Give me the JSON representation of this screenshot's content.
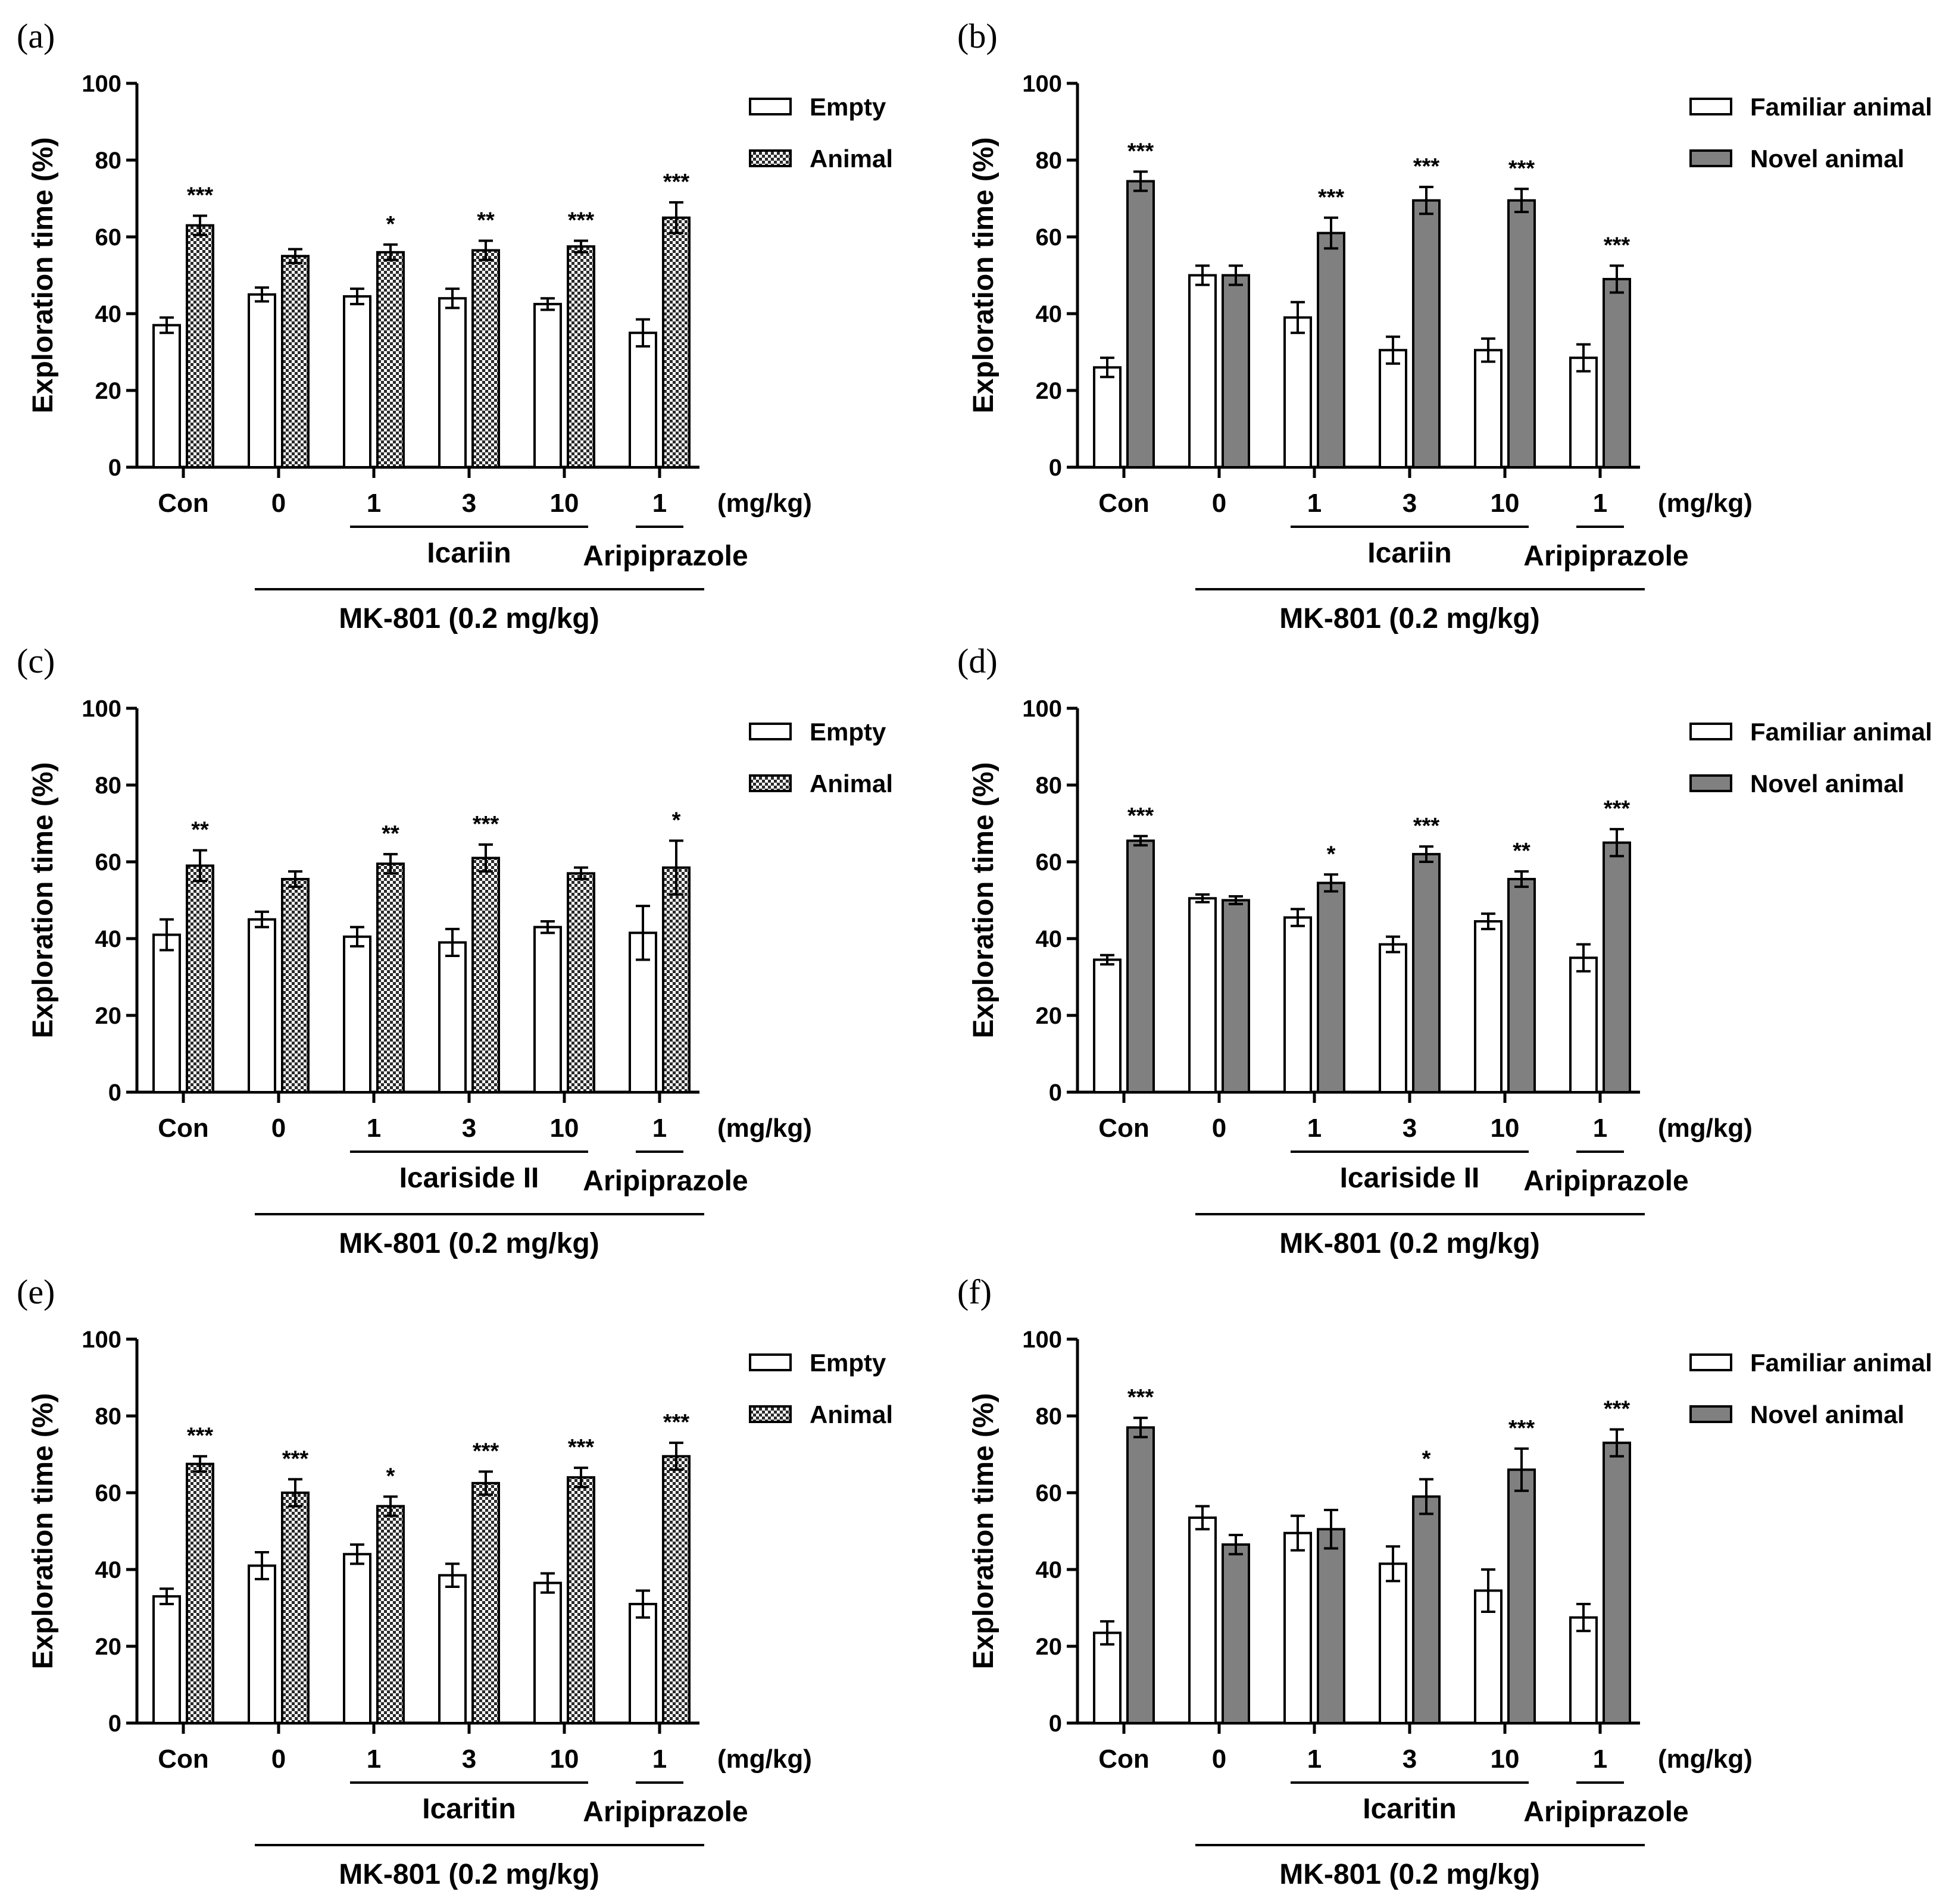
{
  "colors": {
    "axis": "#000000",
    "bar_outline": "#000000",
    "empty_fill": "#ffffff",
    "novel_fill": "#808080",
    "hatch_dark": "#2a2a2a",
    "hatch_light": "#ffffff"
  },
  "chart_data": [
    {
      "panel_label": "(a)",
      "type": "bar",
      "title": "",
      "ylabel": "Exploration time (%)",
      "ylim": [
        0,
        100
      ],
      "yticks": [
        "0",
        "20",
        "40",
        "60",
        "80",
        "100"
      ],
      "categories": [
        "Con",
        "0",
        "1",
        "3",
        "10",
        "1"
      ],
      "unit_label": "(mg/kg)",
      "drug_label": "Icariin",
      "ref_label": "Aripiprazole",
      "mk_label": "MK-801 (0.2 mg/kg)",
      "series": [
        {
          "name": "Empty",
          "values": [
            37,
            45,
            44.5,
            44,
            42.5,
            35
          ],
          "errors": [
            2,
            1.8,
            2,
            2.5,
            1.5,
            3.5
          ],
          "style": "open"
        },
        {
          "name": "Animal",
          "values": [
            63,
            55,
            56,
            56.5,
            57.5,
            65
          ],
          "errors": [
            2.5,
            1.8,
            2,
            2.5,
            1.5,
            4
          ],
          "style": "hatched"
        }
      ],
      "significance": [
        "***",
        "",
        "*",
        "**",
        "***",
        "***"
      ]
    },
    {
      "panel_label": "(b)",
      "type": "bar",
      "title": "",
      "ylabel": "Exploration time (%)",
      "ylim": [
        0,
        100
      ],
      "yticks": [
        "0",
        "20",
        "40",
        "60",
        "80",
        "100"
      ],
      "categories": [
        "Con",
        "0",
        "1",
        "3",
        "10",
        "1"
      ],
      "unit_label": "(mg/kg)",
      "drug_label": "Icariin",
      "ref_label": "Aripiprazole",
      "mk_label": "MK-801 (0.2 mg/kg)",
      "series": [
        {
          "name": "Familiar animal",
          "values": [
            26,
            50,
            39,
            30.5,
            30.5,
            28.5
          ],
          "errors": [
            2.5,
            2.5,
            4,
            3.5,
            3,
            3.5
          ],
          "style": "open"
        },
        {
          "name": "Novel animal",
          "values": [
            74.5,
            50,
            61,
            69.5,
            69.5,
            49
          ],
          "errors": [
            2.5,
            2.5,
            4,
            3.5,
            3,
            3.5
          ],
          "style": "gray"
        }
      ],
      "significance": [
        "***",
        "",
        "***",
        "***",
        "***",
        "***"
      ]
    },
    {
      "panel_label": "(c)",
      "type": "bar",
      "title": "",
      "ylabel": "Exploration time (%)",
      "ylim": [
        0,
        100
      ],
      "yticks": [
        "0",
        "20",
        "40",
        "60",
        "80",
        "100"
      ],
      "categories": [
        "Con",
        "0",
        "1",
        "3",
        "10",
        "1"
      ],
      "unit_label": "(mg/kg)",
      "drug_label": "Icariside II",
      "ref_label": "Aripiprazole",
      "mk_label": "MK-801 (0.2 mg/kg)",
      "series": [
        {
          "name": "Empty",
          "values": [
            41,
            45,
            40.5,
            39,
            43,
            41.5
          ],
          "errors": [
            4,
            2,
            2.5,
            3.5,
            1.5,
            7
          ],
          "style": "open"
        },
        {
          "name": "Animal",
          "values": [
            59,
            55.5,
            59.5,
            61,
            57,
            58.5
          ],
          "errors": [
            4,
            2,
            2.5,
            3.5,
            1.5,
            7
          ],
          "style": "hatched"
        }
      ],
      "significance": [
        "**",
        "",
        "**",
        "***",
        "",
        "*"
      ]
    },
    {
      "panel_label": "(d)",
      "type": "bar",
      "title": "",
      "ylabel": "Exploration time (%)",
      "ylim": [
        0,
        100
      ],
      "yticks": [
        "0",
        "20",
        "40",
        "60",
        "80",
        "100"
      ],
      "categories": [
        "Con",
        "0",
        "1",
        "3",
        "10",
        "1"
      ],
      "unit_label": "(mg/kg)",
      "drug_label": "Icariside II",
      "ref_label": "Aripiprazole",
      "mk_label": "MK-801 (0.2 mg/kg)",
      "series": [
        {
          "name": "Familiar animal",
          "values": [
            34.5,
            50.5,
            45.5,
            38.5,
            44.5,
            35
          ],
          "errors": [
            1.2,
            1,
            2.2,
            2,
            2,
            3.5
          ],
          "style": "open"
        },
        {
          "name": "Novel animal",
          "values": [
            65.5,
            50,
            54.5,
            62,
            55.5,
            65
          ],
          "errors": [
            1.2,
            1,
            2.2,
            2,
            2,
            3.5
          ],
          "style": "gray"
        }
      ],
      "significance": [
        "***",
        "",
        "*",
        "***",
        "**",
        "***"
      ]
    },
    {
      "panel_label": "(e)",
      "type": "bar",
      "title": "",
      "ylabel": "Exploration time (%)",
      "ylim": [
        0,
        100
      ],
      "yticks": [
        "0",
        "20",
        "40",
        "60",
        "80",
        "100"
      ],
      "categories": [
        "Con",
        "0",
        "1",
        "3",
        "10",
        "1"
      ],
      "unit_label": "(mg/kg)",
      "drug_label": "Icaritin",
      "ref_label": "Aripiprazole",
      "mk_label": "MK-801 (0.2 mg/kg)",
      "series": [
        {
          "name": "Empty",
          "values": [
            33,
            41,
            44,
            38.5,
            36.5,
            31
          ],
          "errors": [
            2,
            3.5,
            2.5,
            3,
            2.5,
            3.5
          ],
          "style": "open"
        },
        {
          "name": "Animal",
          "values": [
            67.5,
            60,
            56.5,
            62.5,
            64,
            69.5
          ],
          "errors": [
            2,
            3.5,
            2.5,
            3,
            2.5,
            3.5
          ],
          "style": "hatched"
        }
      ],
      "significance": [
        "***",
        "***",
        "*",
        "***",
        "***",
        "***"
      ]
    },
    {
      "panel_label": "(f)",
      "type": "bar",
      "title": "",
      "ylabel": "Exploration time (%)",
      "ylim": [
        0,
        100
      ],
      "yticks": [
        "0",
        "20",
        "40",
        "60",
        "80",
        "100"
      ],
      "categories": [
        "Con",
        "0",
        "1",
        "3",
        "10",
        "1"
      ],
      "unit_label": "(mg/kg)",
      "drug_label": "Icaritin",
      "ref_label": "Aripiprazole",
      "mk_label": "MK-801 (0.2 mg/kg)",
      "series": [
        {
          "name": "Familiar animal",
          "values": [
            23.5,
            53.5,
            49.5,
            41.5,
            34.5,
            27.5
          ],
          "errors": [
            3,
            3,
            4.5,
            4.5,
            5.5,
            3.5
          ],
          "style": "open"
        },
        {
          "name": "Novel animal",
          "values": [
            77,
            46.5,
            50.5,
            59,
            66,
            73
          ],
          "errors": [
            2.5,
            2.5,
            5,
            4.5,
            5.5,
            3.5
          ],
          "style": "gray"
        }
      ],
      "significance": [
        "***",
        "",
        "",
        "*",
        "***",
        "***"
      ]
    }
  ]
}
